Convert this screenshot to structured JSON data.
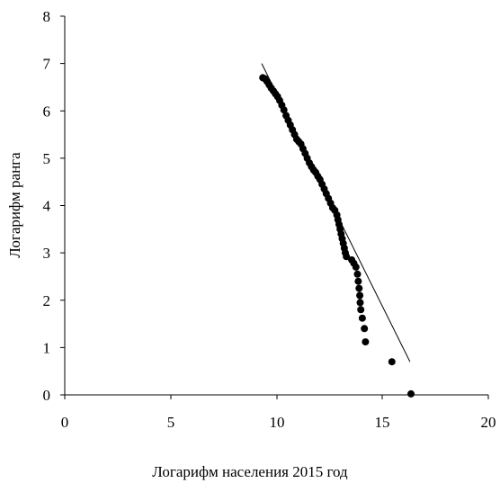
{
  "chart_data": {
    "type": "scatter",
    "title": "",
    "xlabel": "Логарифм населения 2015 год",
    "ylabel": "Логарифм ранга",
    "xlim": [
      0,
      20
    ],
    "ylim": [
      0,
      8
    ],
    "x_ticks": [
      "0",
      "5",
      "10",
      "15",
      "20"
    ],
    "y_ticks": [
      "0",
      "1",
      "2",
      "3",
      "4",
      "5",
      "6",
      "7",
      "8"
    ],
    "grid": false,
    "legend": "none",
    "colors": {
      "points": "#000000",
      "trendline": "#000000",
      "axes": "#000000"
    },
    "series": [
      {
        "type": "scatter",
        "points": [
          [
            9.35,
            6.7
          ],
          [
            9.45,
            6.68
          ],
          [
            9.55,
            6.62
          ],
          [
            9.65,
            6.55
          ],
          [
            9.75,
            6.48
          ],
          [
            9.85,
            6.42
          ],
          [
            9.95,
            6.36
          ],
          [
            10.05,
            6.3
          ],
          [
            10.15,
            6.22
          ],
          [
            10.25,
            6.12
          ],
          [
            10.35,
            6.02
          ],
          [
            10.45,
            5.9
          ],
          [
            10.55,
            5.8
          ],
          [
            10.65,
            5.7
          ],
          [
            10.75,
            5.6
          ],
          [
            10.85,
            5.5
          ],
          [
            10.95,
            5.4
          ],
          [
            11.05,
            5.35
          ],
          [
            11.15,
            5.3
          ],
          [
            11.25,
            5.2
          ],
          [
            11.35,
            5.1
          ],
          [
            11.45,
            5.0
          ],
          [
            11.55,
            4.9
          ],
          [
            11.65,
            4.82
          ],
          [
            11.75,
            4.75
          ],
          [
            11.85,
            4.7
          ],
          [
            11.95,
            4.62
          ],
          [
            12.05,
            4.55
          ],
          [
            12.15,
            4.45
          ],
          [
            12.25,
            4.35
          ],
          [
            12.35,
            4.25
          ],
          [
            12.45,
            4.15
          ],
          [
            12.55,
            4.05
          ],
          [
            12.65,
            3.95
          ],
          [
            12.75,
            3.9
          ],
          [
            12.85,
            3.8
          ],
          [
            12.9,
            3.7
          ],
          [
            12.95,
            3.6
          ],
          [
            13.0,
            3.5
          ],
          [
            13.05,
            3.4
          ],
          [
            13.1,
            3.3
          ],
          [
            13.15,
            3.2
          ],
          [
            13.2,
            3.1
          ],
          [
            13.25,
            3.0
          ],
          [
            13.3,
            2.92
          ],
          [
            13.55,
            2.85
          ],
          [
            13.65,
            2.78
          ],
          [
            13.75,
            2.7
          ],
          [
            13.82,
            2.55
          ],
          [
            13.86,
            2.4
          ],
          [
            13.9,
            2.25
          ],
          [
            13.93,
            2.1
          ],
          [
            13.95,
            1.95
          ],
          [
            13.98,
            1.8
          ],
          [
            14.05,
            1.62
          ],
          [
            14.15,
            1.4
          ],
          [
            14.2,
            1.12
          ],
          [
            15.45,
            0.7
          ],
          [
            16.35,
            0.02
          ]
        ]
      },
      {
        "type": "line",
        "points": [
          [
            9.3,
            7.0
          ],
          [
            16.3,
            0.7
          ]
        ]
      }
    ]
  }
}
